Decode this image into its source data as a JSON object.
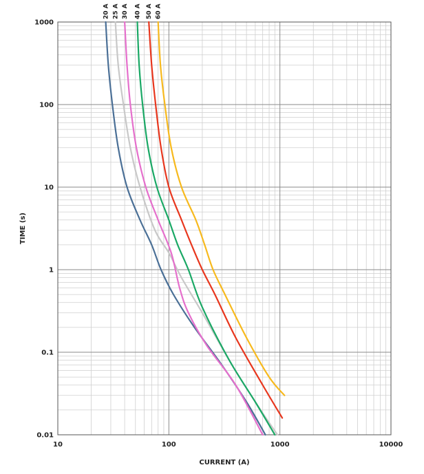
{
  "chart_data": {
    "type": "line",
    "title": "",
    "xlabel": "CURRENT (A)",
    "ylabel": "TIME (s)",
    "x_scale": "log",
    "y_scale": "log",
    "xlim": [
      10,
      10000
    ],
    "ylim": [
      0.01,
      1000
    ],
    "grid": true,
    "legend": "none",
    "x_ticks": [
      {
        "value": 10,
        "label": "10"
      },
      {
        "value": 100,
        "label": "100"
      },
      {
        "value": 1000,
        "label": "1000"
      },
      {
        "value": 10000,
        "label": "10000"
      }
    ],
    "y_ticks": [
      {
        "value": 1000,
        "label": "1000"
      },
      {
        "value": 100,
        "label": "100"
      },
      {
        "value": 10,
        "label": "10"
      },
      {
        "value": 1,
        "label": "1"
      },
      {
        "value": 0.1,
        "label": "0.1"
      },
      {
        "value": 0.01,
        "label": "0.01"
      }
    ],
    "series": [
      {
        "name": "20 A",
        "color": "#4a6f96",
        "points": [
          [
            27,
            1000
          ],
          [
            28.5,
            300
          ],
          [
            31,
            100
          ],
          [
            35,
            30
          ],
          [
            42,
            10
          ],
          [
            55,
            4
          ],
          [
            70,
            2
          ],
          [
            85,
            1
          ],
          [
            110,
            0.5
          ],
          [
            170,
            0.2
          ],
          [
            300,
            0.07
          ],
          [
            500,
            0.025
          ],
          [
            740,
            0.01
          ]
        ]
      },
      {
        "name": "25 A",
        "color": "#c8c8c8",
        "points": [
          [
            33,
            1000
          ],
          [
            35,
            300
          ],
          [
            39,
            100
          ],
          [
            45,
            30
          ],
          [
            55,
            10
          ],
          [
            75,
            3
          ],
          [
            100,
            1.6
          ],
          [
            130,
            0.8
          ],
          [
            200,
            0.3
          ],
          [
            350,
            0.08
          ],
          [
            600,
            0.025
          ],
          [
            950,
            0.01
          ]
        ]
      },
      {
        "name": "30 A",
        "color": "#e56fcc",
        "points": [
          [
            40,
            1000
          ],
          [
            42,
            300
          ],
          [
            45,
            100
          ],
          [
            51,
            30
          ],
          [
            62,
            10
          ],
          [
            80,
            4
          ],
          [
            105,
            1.6
          ],
          [
            125,
            0.6
          ],
          [
            150,
            0.3
          ],
          [
            220,
            0.12
          ],
          [
            400,
            0.04
          ],
          [
            700,
            0.01
          ]
        ]
      },
      {
        "name": "40 A",
        "color": "#1aa865",
        "points": [
          [
            52,
            1000
          ],
          [
            54,
            300
          ],
          [
            58,
            100
          ],
          [
            65,
            30
          ],
          [
            78,
            10
          ],
          [
            100,
            4
          ],
          [
            120,
            2
          ],
          [
            150,
            1
          ],
          [
            200,
            0.35
          ],
          [
            350,
            0.08
          ],
          [
            600,
            0.025
          ],
          [
            900,
            0.01
          ]
        ]
      },
      {
        "name": "50 A",
        "color": "#e8361d",
        "points": [
          [
            66,
            1000
          ],
          [
            70,
            300
          ],
          [
            76,
            100
          ],
          [
            85,
            30
          ],
          [
            100,
            10
          ],
          [
            130,
            4
          ],
          [
            160,
            2
          ],
          [
            200,
            1
          ],
          [
            260,
            0.5
          ],
          [
            400,
            0.15
          ],
          [
            700,
            0.04
          ],
          [
            1050,
            0.016
          ]
        ]
      },
      {
        "name": "60 A",
        "color": "#f7b91d",
        "points": [
          [
            80,
            1000
          ],
          [
            84,
            300
          ],
          [
            92,
            100
          ],
          [
            105,
            30
          ],
          [
            130,
            10
          ],
          [
            175,
            4
          ],
          [
            210,
            2
          ],
          [
            250,
            1
          ],
          [
            320,
            0.5
          ],
          [
            500,
            0.15
          ],
          [
            800,
            0.05
          ],
          [
            1100,
            0.03
          ]
        ]
      }
    ]
  }
}
